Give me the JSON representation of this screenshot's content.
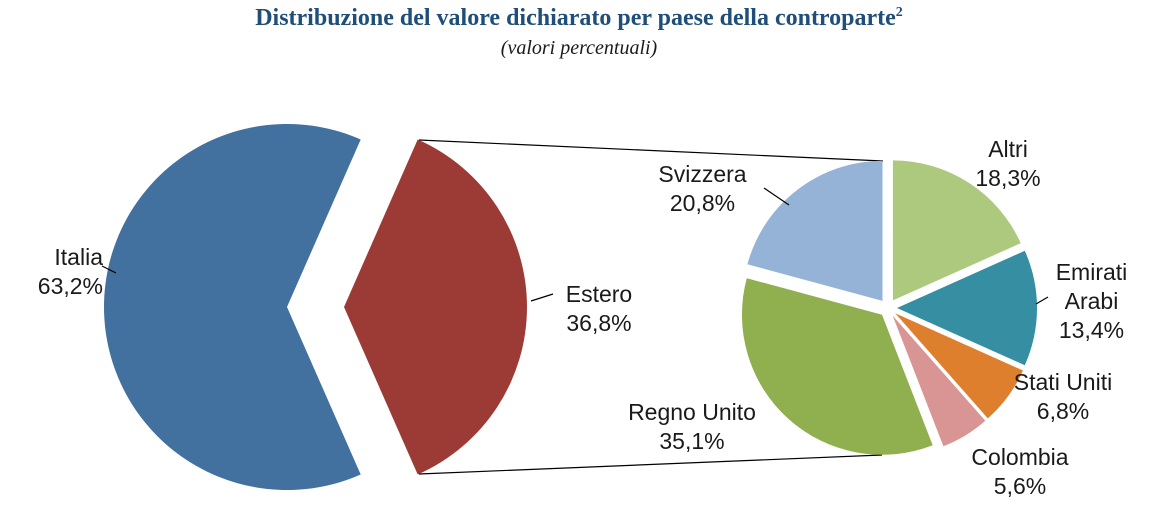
{
  "title": {
    "text": "Distribuzione del valore dichiarato per paese della controparte",
    "footnote_marker": "2"
  },
  "subtitle": "(valori percentuali)",
  "chart_data": {
    "type": "pie-of-pie",
    "title": "Distribuzione del valore dichiarato per paese della controparte",
    "subtitle": "(valori percentuali)",
    "main_pie": {
      "slices": [
        {
          "label": "Italia",
          "value": 63.2,
          "value_label": "63,2%",
          "color": "#42709F"
        },
        {
          "label": "Estero",
          "value": 36.8,
          "value_label": "36,8%",
          "color": "#9C3A36",
          "exploded": true
        }
      ]
    },
    "secondary_pie": {
      "represents": "Estero",
      "slices": [
        {
          "label": "Altri",
          "value": 18.3,
          "value_label": "18,3%",
          "color": "#ADC97E"
        },
        {
          "label": "Emirati Arabi",
          "value": 13.4,
          "value_label": "13,4%",
          "color": "#358EA2"
        },
        {
          "label": "Stati Uniti",
          "value": 6.8,
          "value_label": "6,8%",
          "color": "#DE7F2E"
        },
        {
          "label": "Colombia",
          "value": 5.6,
          "value_label": "5,6%",
          "color": "#D89593"
        },
        {
          "label": "Regno Unito",
          "value": 35.1,
          "value_label": "35,1%",
          "color": "#90AF4E"
        },
        {
          "label": "Svizzera",
          "value": 20.8,
          "value_label": "20,8%",
          "color": "#95B3D7"
        }
      ]
    },
    "layout_hints": {
      "legend": "none",
      "labels": "outside with leader lines",
      "secondary_start_angle_deg": 0,
      "main_exploded_slice": "Estero"
    }
  }
}
